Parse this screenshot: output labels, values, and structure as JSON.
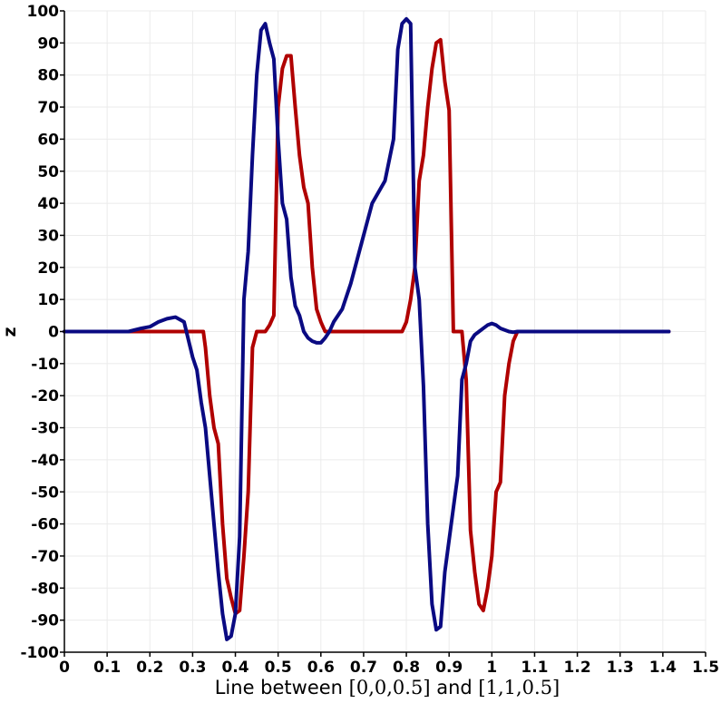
{
  "chart_data": {
    "type": "line",
    "xlabel_parts": {
      "prefix": "Line between ",
      "start": "[0,0,0.5]",
      "middle": " and ",
      "end": "[1,1,0.5]"
    },
    "ylabel": "z",
    "xlim": [
      0,
      1.5
    ],
    "ylim": [
      -100,
      100
    ],
    "xticks": [
      "0",
      "0.1",
      "0.2",
      "0.3",
      "0.4",
      "0.5",
      "0.6",
      "0.7",
      "0.8",
      "0.9",
      "1",
      "1.1",
      "1.2",
      "1.3",
      "1.4",
      "1.5"
    ],
    "yticks": [
      "100",
      "90",
      "80",
      "70",
      "60",
      "50",
      "40",
      "30",
      "20",
      "10",
      "0",
      "-10",
      "-20",
      "-30",
      "-40",
      "-50",
      "-60",
      "-70",
      "-80",
      "-90",
      "-100"
    ],
    "grid": true,
    "legend": "none",
    "series": [
      {
        "color": "#b00000",
        "x": [
          0,
          0.05,
          0.1,
          0.15,
          0.2,
          0.25,
          0.3,
          0.325,
          0.33,
          0.34,
          0.35,
          0.36,
          0.37,
          0.38,
          0.39,
          0.4,
          0.41,
          0.42,
          0.43,
          0.44,
          0.45,
          0.46,
          0.47,
          0.48,
          0.49,
          0.5,
          0.51,
          0.52,
          0.53,
          0.54,
          0.55,
          0.56,
          0.57,
          0.58,
          0.59,
          0.6,
          0.61,
          0.62,
          0.63,
          0.65,
          0.7,
          0.75,
          0.77,
          0.78,
          0.79,
          0.8,
          0.81,
          0.82,
          0.83,
          0.84,
          0.85,
          0.86,
          0.87,
          0.88,
          0.89,
          0.9,
          0.91,
          0.92,
          0.93,
          0.94,
          0.95,
          0.96,
          0.97,
          0.98,
          0.99,
          1.0,
          1.01,
          1.02,
          1.03,
          1.04,
          1.05,
          1.06,
          1.07,
          1.08,
          1.09,
          1.1,
          1.15,
          1.2,
          1.3,
          1.414
        ],
        "y": [
          0,
          0,
          0,
          0,
          0,
          0,
          0,
          0,
          -5,
          -20,
          -30,
          -35,
          -60,
          -77,
          -83,
          -88,
          -87,
          -70,
          -50,
          -5,
          0,
          0,
          0,
          2,
          5,
          70,
          82,
          86,
          86,
          70,
          55,
          45,
          40,
          20,
          7,
          3,
          0,
          0,
          0,
          0,
          0,
          0,
          0,
          0,
          0,
          3,
          10,
          20,
          47,
          55,
          70,
          82,
          90,
          91,
          78,
          69,
          0,
          0,
          0,
          -15,
          -62,
          -75,
          -85,
          -87,
          -80,
          -70,
          -50,
          -47,
          -20,
          -10,
          -3,
          0,
          0,
          0,
          0,
          0,
          0,
          0,
          0,
          0
        ],
        "values_note": ""
      },
      {
        "color": "#0a0a82",
        "x": [
          0,
          0.1,
          0.15,
          0.18,
          0.2,
          0.22,
          0.24,
          0.26,
          0.28,
          0.3,
          0.31,
          0.32,
          0.33,
          0.34,
          0.35,
          0.36,
          0.37,
          0.38,
          0.39,
          0.4,
          0.41,
          0.42,
          0.43,
          0.44,
          0.45,
          0.46,
          0.47,
          0.48,
          0.49,
          0.5,
          0.51,
          0.52,
          0.53,
          0.54,
          0.55,
          0.56,
          0.57,
          0.58,
          0.59,
          0.6,
          0.61,
          0.62,
          0.63,
          0.65,
          0.67,
          0.7,
          0.72,
          0.75,
          0.77,
          0.78,
          0.79,
          0.8,
          0.81,
          0.82,
          0.83,
          0.84,
          0.85,
          0.86,
          0.87,
          0.88,
          0.89,
          0.9,
          0.91,
          0.92,
          0.93,
          0.94,
          0.95,
          0.96,
          0.97,
          0.98,
          0.99,
          1.0,
          1.01,
          1.02,
          1.03,
          1.04,
          1.05,
          1.06,
          1.07,
          1.08,
          1.09,
          1.1,
          1.12,
          1.14,
          1.16,
          1.18,
          1.2,
          1.25,
          1.3,
          1.414
        ],
        "y": [
          0,
          0,
          0,
          1,
          1.5,
          3,
          4,
          4.5,
          3,
          -8,
          -12,
          -22,
          -30,
          -45,
          -60,
          -75,
          -88,
          -96,
          -95,
          -88,
          -64,
          10,
          25,
          55,
          80,
          94,
          96,
          90,
          85,
          60,
          40,
          35,
          17,
          8,
          5,
          0,
          -2,
          -3,
          -3.5,
          -3.5,
          -2,
          0,
          3,
          7,
          15,
          30,
          40,
          47,
          60,
          88,
          96,
          97.5,
          96,
          20,
          10,
          -17,
          -60,
          -85,
          -93,
          -92,
          -75,
          -65,
          -55,
          -45,
          -15,
          -10,
          -3,
          -1,
          0,
          1,
          2,
          2.5,
          2,
          1,
          0.5,
          0,
          -0.2,
          0,
          0,
          0,
          0,
          0,
          0,
          0,
          0,
          0,
          0,
          0,
          0,
          0
        ],
        "values_note": ""
      }
    ]
  }
}
